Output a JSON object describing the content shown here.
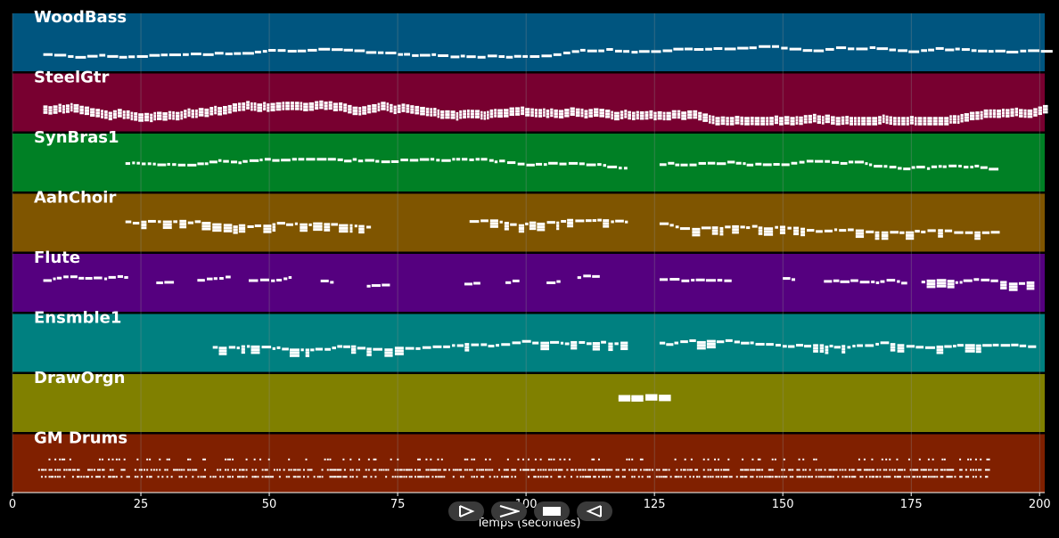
{
  "colors": {
    "background": "#000000",
    "note": "#ffffff",
    "grid": "#8c8c8c"
  },
  "axis": {
    "xlabel": "Temps (secondes)",
    "xlim": [
      0,
      201
    ],
    "ticks": [
      "0",
      "25",
      "50",
      "75",
      "100",
      "125",
      "150",
      "175",
      "200"
    ]
  },
  "tracks": [
    {
      "name": "WoodBass",
      "color": "#00557f",
      "segments": [
        [
          6,
          201,
          0.55,
          0.85,
          "bass"
        ]
      ]
    },
    {
      "name": "SteelGtr",
      "color": "#780030",
      "segments": [
        [
          6,
          201,
          0.35,
          0.75,
          "dense"
        ]
      ]
    },
    {
      "name": "SynBras1",
      "color": "#008025",
      "segments": [
        [
          22,
          120,
          0.42,
          0.62,
          "line"
        ],
        [
          126,
          191,
          0.42,
          0.62,
          "line"
        ]
      ]
    },
    {
      "name": "AahChoir",
      "color": "#7f5500",
      "segments": [
        [
          22,
          70,
          0.3,
          0.65,
          "chord"
        ],
        [
          89,
          120,
          0.25,
          0.7,
          "chord"
        ],
        [
          126,
          191,
          0.3,
          0.65,
          "chord"
        ]
      ]
    },
    {
      "name": "Flute",
      "color": "#55007f",
      "segments": [
        [
          6,
          22,
          0.3,
          0.55,
          "line"
        ],
        [
          28,
          30,
          0.35,
          0.55,
          "line"
        ],
        [
          36,
          42,
          0.35,
          0.55,
          "line"
        ],
        [
          46,
          54,
          0.35,
          0.55,
          "line"
        ],
        [
          60,
          62,
          0.35,
          0.55,
          "line"
        ],
        [
          69,
          73,
          0.45,
          0.6,
          "line"
        ],
        [
          88,
          90,
          0.35,
          0.6,
          "line"
        ],
        [
          96,
          98,
          0.35,
          0.55,
          "line"
        ],
        [
          104,
          106,
          0.35,
          0.55,
          "line"
        ],
        [
          110,
          113,
          0.3,
          0.5,
          "line"
        ],
        [
          126,
          140,
          0.35,
          0.55,
          "line"
        ],
        [
          150,
          152,
          0.35,
          0.5,
          "line"
        ],
        [
          158,
          174,
          0.3,
          0.55,
          "line"
        ],
        [
          177,
          199,
          0.35,
          0.55,
          "chord"
        ]
      ]
    },
    {
      "name": "Ensmble1",
      "color": "#008080",
      "segments": [
        [
          39,
          120,
          0.4,
          0.65,
          "chord"
        ],
        [
          126,
          199,
          0.3,
          0.65,
          "chord"
        ]
      ]
    },
    {
      "name": "DrawOrgn",
      "color": "#808000",
      "segments": [
        [
          118,
          126,
          0.3,
          0.4,
          "organ"
        ]
      ]
    },
    {
      "name": "GM Drums",
      "color": "#802000",
      "segments": [
        [
          5,
          190,
          0.3,
          0.75,
          "drums"
        ]
      ]
    }
  ],
  "controls": [
    {
      "name": "play-button",
      "icon": "play-icon"
    },
    {
      "name": "forward-button",
      "icon": "forward-icon"
    },
    {
      "name": "stop-button",
      "icon": "stop-icon"
    },
    {
      "name": "rewind-button",
      "icon": "rewind-icon"
    }
  ]
}
